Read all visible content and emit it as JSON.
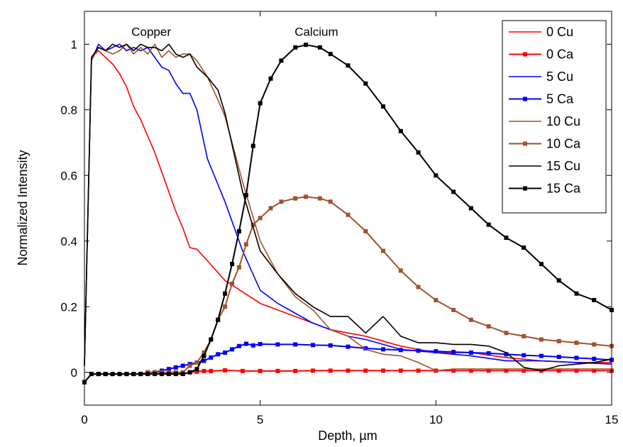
{
  "chart_data": {
    "type": "line",
    "title": "",
    "xlabel": "Depth, µm",
    "ylabel": "Normalized Intensity",
    "xlim": [
      0,
      15
    ],
    "ylim": [
      -0.1,
      1.1
    ],
    "xticks": [
      0,
      5,
      10,
      15
    ],
    "yticks": [
      0,
      0.2,
      0.4,
      0.6,
      0.8,
      1
    ],
    "xtick_labels": [
      "0",
      "5",
      "10",
      "15"
    ],
    "ytick_labels": [
      "0",
      "0.2",
      "0.4",
      "0.6",
      "0.8",
      "1"
    ],
    "grid": false,
    "legend_position": "top-right",
    "annotations": [
      {
        "text": "Copper",
        "x": 1.9,
        "y": 1.025
      },
      {
        "text": "Calcium",
        "x": 6.6,
        "y": 1.025
      }
    ],
    "series": [
      {
        "name": "0 Cu",
        "color": "#ff0000",
        "marker": "none",
        "x": [
          0,
          0.2,
          0.4,
          0.6,
          0.8,
          1.0,
          1.2,
          1.4,
          1.6,
          1.8,
          2.0,
          2.2,
          2.4,
          2.6,
          2.8,
          3.0,
          3.2,
          3.5,
          4.0,
          4.5,
          5.0,
          5.5,
          6.0,
          6.5,
          7.0,
          7.5,
          8.0,
          8.5,
          9.0,
          10.0,
          11.0,
          12.0,
          13.0,
          14.0,
          15.0
        ],
        "y": [
          0.02,
          0.96,
          0.98,
          0.96,
          0.94,
          0.91,
          0.87,
          0.81,
          0.77,
          0.72,
          0.67,
          0.61,
          0.55,
          0.49,
          0.44,
          0.38,
          0.375,
          0.34,
          0.28,
          0.245,
          0.21,
          0.19,
          0.17,
          0.15,
          0.13,
          0.12,
          0.11,
          0.095,
          0.08,
          0.06,
          0.06,
          0.045,
          0.035,
          0.03,
          0.03
        ]
      },
      {
        "name": "0 Ca",
        "color": "#ff0000",
        "marker": "square",
        "x": [
          0,
          0.2,
          0.4,
          0.6,
          0.8,
          1.0,
          1.2,
          1.4,
          1.6,
          1.8,
          2.0,
          2.2,
          2.4,
          2.6,
          2.8,
          3.0,
          3.2,
          3.4,
          3.6,
          4.0,
          4.5,
          5.0,
          5.5,
          6.0,
          6.5,
          7.0,
          7.5,
          8.0,
          8.5,
          9.0,
          9.5,
          10.0,
          10.5,
          11.0,
          11.5,
          12.0,
          12.5,
          13.0,
          13.5,
          14.0,
          14.5,
          15.0
        ],
        "y": [
          -0.03,
          -0.005,
          -0.005,
          -0.005,
          -0.005,
          -0.005,
          -0.005,
          -0.005,
          -0.005,
          -0.005,
          -0.005,
          -0.005,
          -0.005,
          -0.005,
          -0.005,
          0.0,
          0.002,
          0.004,
          0.004,
          0.006,
          0.004,
          0.004,
          0.004,
          0.004,
          0.005,
          0.005,
          0.005,
          0.005,
          0.005,
          0.005,
          0.005,
          0.005,
          0.005,
          0.005,
          0.005,
          0.005,
          0.005,
          0.005,
          0.005,
          0.005,
          0.005,
          0.005
        ]
      },
      {
        "name": "5 Cu",
        "color": "#0000ff",
        "marker": "none",
        "x": [
          0,
          0.2,
          0.4,
          0.6,
          0.8,
          1.0,
          1.2,
          1.4,
          1.6,
          1.8,
          2.0,
          2.2,
          2.4,
          2.6,
          2.8,
          3.0,
          3.2,
          3.5,
          4.0,
          4.5,
          5.0,
          5.5,
          6.0,
          6.5,
          7.0,
          7.5,
          8.0,
          8.5,
          9.0,
          10.0,
          11.0,
          12.0,
          13.0,
          14.0,
          15.0
        ],
        "y": [
          0.02,
          0.95,
          1.0,
          0.98,
          0.99,
          1.0,
          0.98,
          0.99,
          0.98,
          0.99,
          0.96,
          0.93,
          0.92,
          0.88,
          0.85,
          0.85,
          0.8,
          0.65,
          0.52,
          0.37,
          0.25,
          0.21,
          0.18,
          0.15,
          0.13,
          0.11,
          0.1,
          0.085,
          0.07,
          0.06,
          0.05,
          0.035,
          0.035,
          0.03,
          0.025
        ]
      },
      {
        "name": "5 Ca",
        "color": "#0000ff",
        "marker": "square",
        "x": [
          0,
          0.2,
          0.4,
          0.6,
          0.8,
          1.0,
          1.2,
          1.4,
          1.6,
          1.8,
          2.0,
          2.2,
          2.4,
          2.6,
          2.8,
          3.0,
          3.2,
          3.4,
          3.6,
          3.8,
          4.0,
          4.2,
          4.4,
          4.6,
          4.8,
          5.0,
          5.5,
          6.0,
          6.5,
          7.0,
          7.5,
          8.0,
          8.5,
          9.0,
          9.5,
          10.0,
          10.5,
          11.0,
          11.5,
          12.0,
          12.5,
          13.0,
          13.5,
          14.0,
          14.5,
          15.0
        ],
        "y": [
          -0.03,
          -0.005,
          -0.005,
          -0.005,
          -0.005,
          -0.005,
          -0.005,
          -0.005,
          -0.005,
          0.0,
          0.0,
          0.005,
          0.01,
          0.015,
          0.02,
          0.025,
          0.03,
          0.035,
          0.045,
          0.055,
          0.06,
          0.07,
          0.08,
          0.087,
          0.082,
          0.086,
          0.085,
          0.085,
          0.083,
          0.082,
          0.078,
          0.073,
          0.07,
          0.068,
          0.066,
          0.064,
          0.062,
          0.06,
          0.058,
          0.055,
          0.052,
          0.05,
          0.047,
          0.044,
          0.041,
          0.038
        ]
      },
      {
        "name": "10 Cu",
        "color": "#a0522d",
        "marker": "none",
        "x": [
          0,
          0.2,
          0.4,
          0.6,
          0.8,
          1.0,
          1.2,
          1.4,
          1.6,
          1.8,
          2.0,
          2.2,
          2.4,
          2.6,
          2.8,
          3.0,
          3.2,
          3.5,
          3.8,
          4.0,
          4.5,
          5.0,
          5.5,
          6.0,
          6.5,
          7.0,
          7.5,
          8.0,
          8.5,
          9.0,
          9.5,
          10.0,
          10.5,
          11.0,
          12.0,
          13.0,
          14.0,
          15.0
        ],
        "y": [
          0.02,
          0.95,
          0.99,
          0.98,
          0.97,
          0.98,
          1.0,
          0.97,
          0.99,
          0.97,
          1.0,
          0.96,
          0.98,
          0.96,
          0.97,
          0.97,
          0.95,
          0.9,
          0.83,
          0.78,
          0.58,
          0.4,
          0.3,
          0.23,
          0.19,
          0.13,
          0.11,
          0.07,
          0.055,
          0.05,
          0.03,
          0.005,
          0.01,
          0.01,
          0.01,
          0.01,
          0.01,
          0.01
        ]
      },
      {
        "name": "10 Ca",
        "color": "#a0522d",
        "marker": "square",
        "x": [
          0,
          0.2,
          0.4,
          0.6,
          0.8,
          1.0,
          1.2,
          1.4,
          1.6,
          1.8,
          2.0,
          2.2,
          2.4,
          2.6,
          2.8,
          3.0,
          3.2,
          3.4,
          3.6,
          3.8,
          4.0,
          4.2,
          4.4,
          4.6,
          4.8,
          5.0,
          5.3,
          5.6,
          6.0,
          6.3,
          6.7,
          7.0,
          7.5,
          8.0,
          8.5,
          9.0,
          9.5,
          10.0,
          10.5,
          11.0,
          11.5,
          12.0,
          12.5,
          13.0,
          13.5,
          14.0,
          14.5,
          15.0
        ],
        "y": [
          -0.03,
          -0.005,
          -0.005,
          -0.005,
          -0.005,
          -0.005,
          -0.005,
          -0.005,
          -0.005,
          0.0,
          0.0,
          0.0,
          0.0,
          0.0,
          0.0,
          0.02,
          0.03,
          0.06,
          0.1,
          0.16,
          0.2,
          0.27,
          0.32,
          0.39,
          0.45,
          0.47,
          0.5,
          0.52,
          0.53,
          0.535,
          0.53,
          0.52,
          0.48,
          0.43,
          0.37,
          0.31,
          0.26,
          0.22,
          0.19,
          0.16,
          0.14,
          0.12,
          0.11,
          0.1,
          0.095,
          0.09,
          0.085,
          0.08
        ]
      },
      {
        "name": "15 Cu",
        "color": "#000000",
        "marker": "none",
        "x": [
          0,
          0.2,
          0.4,
          0.6,
          0.8,
          1.0,
          1.2,
          1.4,
          1.6,
          1.8,
          2.0,
          2.2,
          2.4,
          2.6,
          2.8,
          3.0,
          3.2,
          3.5,
          3.8,
          4.0,
          4.5,
          5.0,
          5.5,
          6.0,
          6.5,
          7.0,
          7.5,
          8.0,
          8.5,
          9.0,
          9.5,
          10.0,
          10.5,
          11.0,
          11.5,
          12.0,
          12.5,
          13.0,
          13.5,
          14.0,
          14.5,
          15.0
        ],
        "y": [
          0.02,
          0.96,
          0.99,
          0.98,
          1.0,
          0.99,
          1.0,
          0.98,
          1.0,
          0.99,
          0.99,
          0.98,
          1.0,
          0.97,
          0.96,
          0.97,
          0.93,
          0.9,
          0.86,
          0.79,
          0.55,
          0.37,
          0.3,
          0.24,
          0.2,
          0.17,
          0.17,
          0.12,
          0.17,
          0.11,
          0.09,
          0.09,
          0.085,
          0.085,
          0.08,
          0.06,
          0.015,
          0.005,
          0.02,
          0.025,
          0.03,
          0.04
        ]
      },
      {
        "name": "15 Ca",
        "color": "#000000",
        "marker": "square",
        "x": [
          0,
          0.2,
          0.4,
          0.6,
          0.8,
          1.0,
          1.2,
          1.4,
          1.6,
          1.8,
          2.0,
          2.2,
          2.4,
          2.6,
          2.8,
          3.0,
          3.2,
          3.4,
          3.6,
          3.8,
          4.0,
          4.2,
          4.4,
          4.6,
          4.8,
          5.0,
          5.3,
          5.6,
          6.0,
          6.3,
          6.7,
          7.0,
          7.5,
          8.0,
          8.5,
          9.0,
          9.5,
          10.0,
          10.5,
          11.0,
          11.5,
          12.0,
          12.5,
          13.0,
          13.5,
          14.0,
          14.5,
          15.0
        ],
        "y": [
          -0.03,
          -0.005,
          -0.005,
          -0.005,
          -0.005,
          -0.005,
          -0.005,
          -0.005,
          -0.005,
          -0.005,
          -0.005,
          -0.005,
          -0.005,
          -0.005,
          -0.005,
          0.0,
          0.01,
          0.05,
          0.1,
          0.16,
          0.24,
          0.33,
          0.43,
          0.54,
          0.69,
          0.82,
          0.895,
          0.95,
          0.99,
          0.998,
          0.99,
          0.97,
          0.935,
          0.88,
          0.81,
          0.735,
          0.67,
          0.6,
          0.55,
          0.5,
          0.45,
          0.41,
          0.38,
          0.33,
          0.28,
          0.24,
          0.22,
          0.19
        ]
      }
    ]
  }
}
